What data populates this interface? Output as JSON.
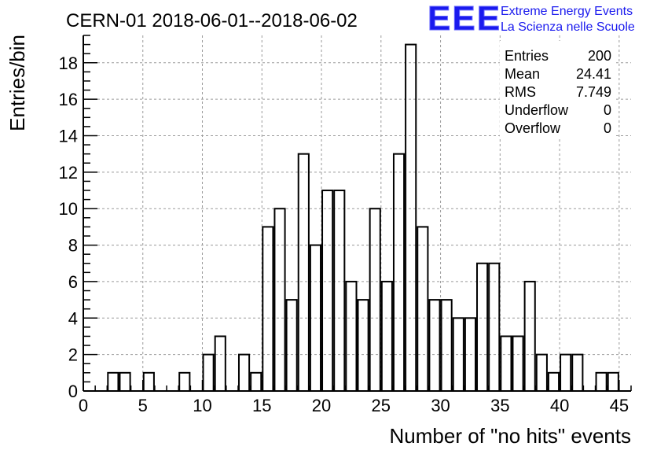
{
  "chart_data": {
    "type": "bar",
    "title": "CERN-01 2018-06-01--2018-06-02",
    "xlabel": "Number of \"no hits\" events",
    "ylabel": "Entries/bin",
    "xlim": [
      0,
      46
    ],
    "ylim": [
      0,
      19.5
    ],
    "x_ticks": [
      0,
      5,
      10,
      15,
      20,
      25,
      30,
      35,
      40,
      45
    ],
    "y_ticks": [
      0,
      2,
      4,
      6,
      8,
      10,
      12,
      14,
      16,
      18
    ],
    "grid": true,
    "bin_width": 1,
    "bins": [
      {
        "x": 2,
        "value": 1
      },
      {
        "x": 3,
        "value": 1
      },
      {
        "x": 5,
        "value": 1
      },
      {
        "x": 8,
        "value": 1
      },
      {
        "x": 10,
        "value": 2
      },
      {
        "x": 11,
        "value": 3
      },
      {
        "x": 13,
        "value": 2
      },
      {
        "x": 14,
        "value": 1
      },
      {
        "x": 15,
        "value": 9
      },
      {
        "x": 16,
        "value": 10
      },
      {
        "x": 17,
        "value": 5
      },
      {
        "x": 18,
        "value": 13
      },
      {
        "x": 19,
        "value": 8
      },
      {
        "x": 20,
        "value": 11
      },
      {
        "x": 21,
        "value": 11
      },
      {
        "x": 22,
        "value": 6
      },
      {
        "x": 23,
        "value": 5
      },
      {
        "x": 24,
        "value": 10
      },
      {
        "x": 25,
        "value": 6
      },
      {
        "x": 26,
        "value": 13
      },
      {
        "x": 27,
        "value": 19
      },
      {
        "x": 28,
        "value": 9
      },
      {
        "x": 29,
        "value": 5
      },
      {
        "x": 30,
        "value": 5
      },
      {
        "x": 31,
        "value": 4
      },
      {
        "x": 32,
        "value": 4
      },
      {
        "x": 33,
        "value": 7
      },
      {
        "x": 34,
        "value": 7
      },
      {
        "x": 35,
        "value": 3
      },
      {
        "x": 36,
        "value": 3
      },
      {
        "x": 37,
        "value": 6
      },
      {
        "x": 38,
        "value": 2
      },
      {
        "x": 39,
        "value": 1
      },
      {
        "x": 40,
        "value": 2
      },
      {
        "x": 41,
        "value": 2
      },
      {
        "x": 43,
        "value": 1
      },
      {
        "x": 44,
        "value": 1
      }
    ],
    "stats": [
      {
        "label": "Entries",
        "value": "200"
      },
      {
        "label": "Mean",
        "value": "24.41"
      },
      {
        "label": "RMS",
        "value": "7.749"
      },
      {
        "label": "Underflow",
        "value": "0"
      },
      {
        "label": "Overflow",
        "value": "0"
      }
    ]
  },
  "logo": {
    "mark": "EEE",
    "line1": "Extreme Energy Events",
    "line2": "La Scienza nelle Scuole",
    "color": "#1a1aee"
  },
  "colors": {
    "bar": "#000000",
    "grid": "#9a9a9a"
  }
}
